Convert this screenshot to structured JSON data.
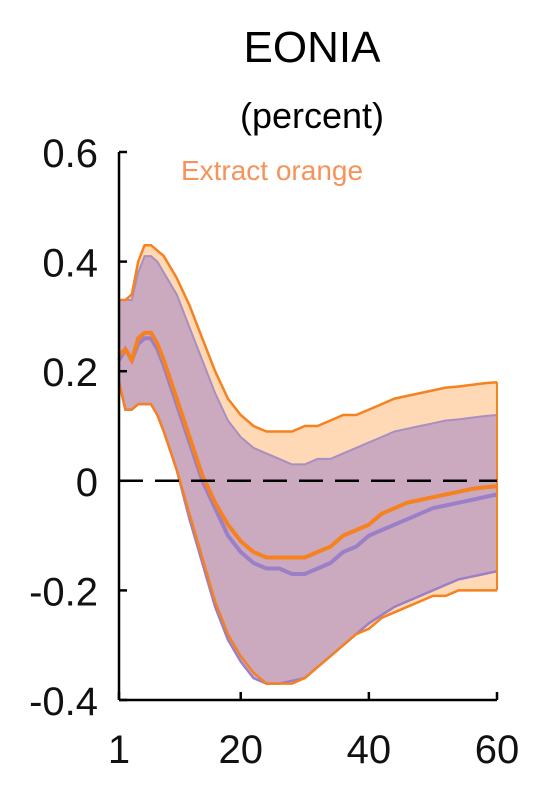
{
  "chart_data": {
    "type": "area",
    "title": "EONIA",
    "subtitle": "(percent)",
    "annotation": "Extract orange",
    "xlim": [
      1,
      60
    ],
    "ylim": [
      -0.4,
      0.6
    ],
    "x_ticks": [
      1,
      20,
      40,
      60
    ],
    "y_ticks": [
      0.6,
      0.4,
      0.2,
      0,
      -0.2,
      -0.4
    ],
    "x_tick_labels": [
      "1",
      "20",
      "40",
      "60"
    ],
    "y_tick_labels": [
      "0.6",
      "0.4",
      "0.2",
      "0",
      "-0.2",
      "-0.4"
    ],
    "zero_line": "dashed",
    "grid": false,
    "x": [
      1,
      2,
      3,
      4,
      5,
      6,
      7,
      8,
      10,
      12,
      14,
      16,
      18,
      20,
      22,
      24,
      26,
      28,
      30,
      32,
      34,
      36,
      38,
      40,
      42,
      44,
      46,
      48,
      50,
      52,
      54,
      56,
      58,
      60
    ],
    "colors": {
      "orange_line": "#f5821f",
      "orange_band": "#ffd8b5",
      "purple_line": "#9b7fc7",
      "purple_band": "#c8a8c0",
      "purple_edge": "#a88fc0",
      "zero_line": "#000000",
      "annotation": "#f5935a"
    },
    "series": [
      {
        "median": [
          0.23,
          0.24,
          0.22,
          0.26,
          0.27,
          0.27,
          0.25,
          0.22,
          0.15,
          0.08,
          0.01,
          -0.04,
          -0.08,
          -0.11,
          -0.13,
          -0.14,
          -0.14,
          -0.14,
          -0.14,
          -0.13,
          -0.12,
          -0.1,
          -0.09,
          -0.08,
          -0.06,
          -0.05,
          -0.04,
          -0.035,
          -0.03,
          -0.025,
          -0.02,
          -0.015,
          -0.012,
          -0.01
        ],
        "upper": [
          0.33,
          0.33,
          0.34,
          0.4,
          0.43,
          0.43,
          0.42,
          0.41,
          0.37,
          0.32,
          0.26,
          0.2,
          0.15,
          0.12,
          0.1,
          0.09,
          0.09,
          0.09,
          0.1,
          0.1,
          0.11,
          0.12,
          0.12,
          0.13,
          0.14,
          0.15,
          0.155,
          0.16,
          0.165,
          0.17,
          0.172,
          0.175,
          0.178,
          0.18
        ],
        "lower": [
          0.18,
          0.13,
          0.13,
          0.14,
          0.14,
          0.14,
          0.12,
          0.09,
          0.02,
          -0.06,
          -0.14,
          -0.22,
          -0.28,
          -0.32,
          -0.35,
          -0.37,
          -0.37,
          -0.37,
          -0.36,
          -0.34,
          -0.32,
          -0.3,
          -0.28,
          -0.27,
          -0.25,
          -0.24,
          -0.23,
          -0.22,
          -0.21,
          -0.21,
          -0.2,
          -0.2,
          -0.2,
          -0.2
        ]
      },
      {
        "median": [
          0.22,
          0.24,
          0.22,
          0.25,
          0.26,
          0.26,
          0.24,
          0.21,
          0.14,
          0.07,
          0.0,
          -0.05,
          -0.1,
          -0.13,
          -0.15,
          -0.16,
          -0.16,
          -0.17,
          -0.17,
          -0.16,
          -0.15,
          -0.13,
          -0.12,
          -0.1,
          -0.09,
          -0.08,
          -0.07,
          -0.06,
          -0.05,
          -0.045,
          -0.04,
          -0.035,
          -0.03,
          -0.025
        ],
        "upper": [
          0.33,
          0.33,
          0.33,
          0.38,
          0.41,
          0.41,
          0.4,
          0.38,
          0.34,
          0.28,
          0.22,
          0.16,
          0.11,
          0.08,
          0.06,
          0.05,
          0.04,
          0.03,
          0.03,
          0.04,
          0.04,
          0.05,
          0.06,
          0.07,
          0.08,
          0.09,
          0.095,
          0.1,
          0.105,
          0.11,
          0.112,
          0.115,
          0.118,
          0.12
        ],
        "lower": [
          0.18,
          0.13,
          0.13,
          0.14,
          0.14,
          0.14,
          0.12,
          0.09,
          0.02,
          -0.07,
          -0.15,
          -0.23,
          -0.29,
          -0.33,
          -0.36,
          -0.37,
          -0.37,
          -0.365,
          -0.36,
          -0.34,
          -0.32,
          -0.3,
          -0.28,
          -0.26,
          -0.245,
          -0.23,
          -0.22,
          -0.21,
          -0.2,
          -0.19,
          -0.18,
          -0.175,
          -0.17,
          -0.165
        ]
      }
    ]
  }
}
